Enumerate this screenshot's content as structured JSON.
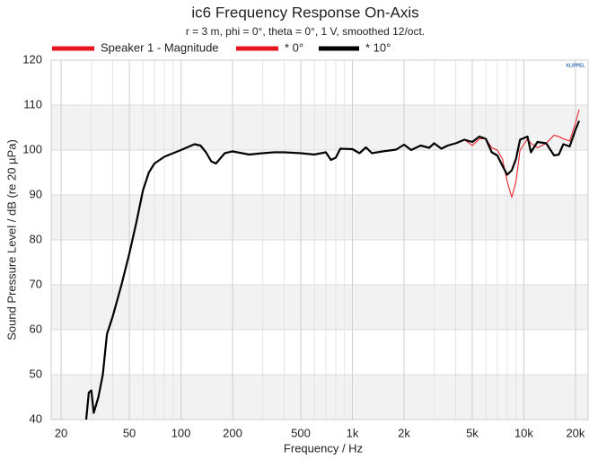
{
  "chart_data": {
    "type": "line",
    "title": "ic6 Frequency Response On-Axis",
    "subtitle": "r = 3 m, phi = 0°, theta = 0°, 1 V, smoothed 12/oct.",
    "legend_header": {
      "label": "Speaker 1 - Magnitude",
      "color": "#e8141e"
    },
    "logo": "KLIPPEL",
    "x_label": "Frequency / Hz",
    "y_label": "Sound Pressure Level / dB (re 20 µPa)",
    "log_x": true,
    "grid": true,
    "bands": true,
    "xlim": [
      17.5,
      23700
    ],
    "ylim": [
      40,
      120
    ],
    "xticks": [
      20,
      50,
      100,
      200,
      500,
      {
        "value": 1000,
        "label": "1k"
      },
      {
        "value": 2000,
        "label": "2k"
      },
      {
        "value": 5000,
        "label": "5k"
      },
      {
        "value": 10000,
        "label": "10k"
      },
      {
        "value": 20000,
        "label": "20k"
      }
    ],
    "yticks": [
      40,
      50,
      60,
      70,
      80,
      90,
      100,
      110,
      120
    ],
    "x": [
      28,
      29,
      30,
      31,
      33,
      35,
      37,
      40,
      45,
      50,
      55,
      60,
      65,
      70,
      80,
      100,
      120,
      130,
      140,
      150,
      160,
      180,
      200,
      250,
      300,
      350,
      400,
      500,
      600,
      700,
      750,
      800,
      850,
      1000,
      1100,
      1200,
      1300,
      1500,
      1800,
      2000,
      2200,
      2500,
      2800,
      3000,
      3300,
      3600,
      4000,
      4500,
      5000,
      5500,
      6000,
      6500,
      7000,
      7500,
      8000,
      8500,
      9000,
      9500,
      10500,
      11000,
      12000,
      13500,
      15000,
      16000,
      17000,
      18500,
      20000,
      21000
    ],
    "series": [
      {
        "name": "* 0°",
        "color": "#e8141e",
        "width": 1,
        "values": [
          40,
          46,
          46.5,
          41.5,
          45,
          50,
          59,
          63,
          70,
          77,
          84,
          91,
          95,
          97,
          98.5,
          100,
          101.3,
          101,
          99.5,
          97.5,
          97,
          99.3,
          99.7,
          99,
          99.3,
          99.5,
          99.5,
          99.3,
          99,
          99.5,
          97.8,
          98.3,
          100.3,
          100.2,
          99.3,
          100.6,
          99.3,
          99.7,
          100.1,
          101.2,
          100,
          101,
          100.5,
          101.5,
          100.3,
          101,
          101.5,
          102.3,
          101,
          102.5,
          102.5,
          100.5,
          100,
          98,
          93,
          89.5,
          93,
          100,
          102.5,
          101.5,
          100.5,
          101.5,
          103.3,
          103,
          102.5,
          102,
          106,
          109
        ]
      },
      {
        "name": "* 10°",
        "color": "#000000",
        "width": 2.2,
        "values": [
          40,
          46,
          46.5,
          41.5,
          45,
          50,
          59,
          63,
          70,
          77,
          84,
          91,
          95,
          97,
          98.5,
          100,
          101.3,
          101,
          99.5,
          97.5,
          97,
          99.3,
          99.7,
          99,
          99.3,
          99.5,
          99.5,
          99.3,
          99,
          99.5,
          97.8,
          98.3,
          100.3,
          100.2,
          99.3,
          100.6,
          99.3,
          99.7,
          100.1,
          101.2,
          100,
          101,
          100.5,
          101.5,
          100.3,
          101,
          101.5,
          102.3,
          101.8,
          103,
          102.5,
          99.5,
          98.8,
          96.5,
          94.5,
          95.5,
          98,
          102.3,
          103,
          99.5,
          101.8,
          101.5,
          98.8,
          99,
          101.3,
          100.8,
          104.5,
          106.5
        ]
      }
    ]
  }
}
